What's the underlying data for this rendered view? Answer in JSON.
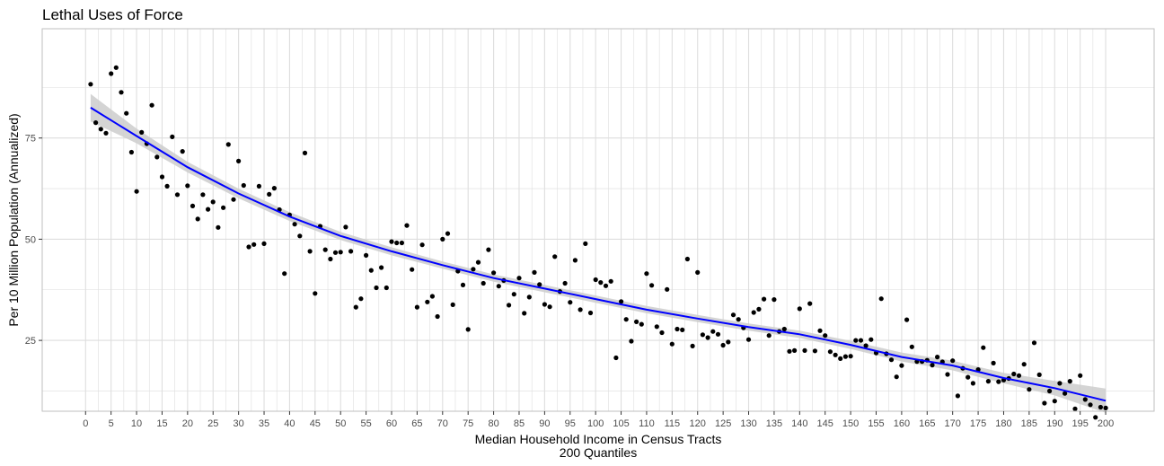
{
  "chart_data": {
    "type": "scatter",
    "title": "Lethal Uses of Force",
    "xlabel": "Median Household Income in Census Tracts",
    "xlabel_sub": "200 Quantiles",
    "ylabel": "Per 10 Million Population (Annualized)",
    "xlim": [
      -8.5,
      209.5
    ],
    "ylim": [
      7.5,
      102
    ],
    "x_ticks": [
      0,
      5,
      10,
      15,
      20,
      25,
      30,
      35,
      40,
      45,
      50,
      55,
      60,
      65,
      70,
      75,
      80,
      85,
      90,
      95,
      100,
      105,
      110,
      115,
      120,
      125,
      130,
      135,
      140,
      145,
      150,
      155,
      160,
      165,
      170,
      175,
      180,
      185,
      190,
      195,
      200
    ],
    "y_ticks": [
      25,
      50,
      75
    ],
    "grid": true,
    "legend": "none",
    "colors": {
      "points": "#000000",
      "smooth_line": "#0000ff",
      "confidence_band": "#cccccc",
      "grid": "#dedede",
      "panel_border": "#bfbfbf"
    },
    "series": [
      {
        "x": [
          1,
          2,
          3,
          4,
          5,
          6,
          7,
          8,
          9,
          10,
          11,
          12,
          13,
          14,
          15,
          16,
          17,
          18,
          19,
          20,
          21,
          22,
          23,
          24,
          25,
          26,
          27,
          28,
          29,
          30,
          31,
          32,
          33,
          34,
          35,
          36,
          37,
          38,
          39,
          40,
          41,
          42,
          43,
          44,
          45,
          46,
          47,
          48,
          49,
          50,
          51,
          52,
          53,
          54,
          55,
          56,
          57,
          58,
          59,
          60,
          61,
          62,
          63,
          64,
          65,
          66,
          67,
          68,
          69,
          70,
          71,
          72,
          73,
          74,
          75,
          76,
          77,
          78,
          79,
          80,
          81,
          82,
          83,
          84,
          85,
          86,
          87,
          88,
          89,
          90,
          91,
          92,
          93,
          94,
          95,
          96,
          97,
          98,
          99,
          100,
          101,
          102,
          103,
          104,
          105,
          106,
          107,
          108,
          109,
          110,
          111,
          112,
          113,
          114,
          115,
          116,
          117,
          118,
          119,
          120,
          121,
          122,
          123,
          124,
          125,
          126,
          127,
          128,
          129,
          130,
          131,
          132,
          133,
          134,
          135,
          136,
          137,
          138,
          139,
          140,
          141,
          142,
          143,
          144,
          145,
          146,
          147,
          148,
          149,
          150,
          151,
          152,
          153,
          154,
          155,
          156,
          157,
          158,
          159,
          160,
          161,
          162,
          163,
          164,
          165,
          166,
          167,
          168,
          169,
          170,
          171,
          172,
          173,
          174,
          175,
          176,
          177,
          178,
          179,
          180,
          181,
          182,
          183,
          184,
          185,
          186,
          187,
          188,
          189,
          190,
          191,
          192,
          193,
          194,
          195,
          196,
          197,
          198,
          199,
          200
        ],
        "y": [
          88.3,
          78.8,
          77.2,
          76.2,
          90.9,
          92.4,
          86.3,
          81.1,
          71.5,
          61.8,
          76.4,
          73.6,
          83.1,
          70.3,
          65.4,
          63.1,
          75.3,
          61.0,
          71.7,
          63.2,
          58.2,
          55.0,
          61.0,
          57.4,
          59.2,
          52.9,
          57.8,
          73.4,
          59.8,
          69.3,
          63.3,
          48.1,
          48.7,
          63.1,
          48.9,
          61.1,
          62.6,
          57.3,
          41.5,
          56.0,
          53.7,
          50.8,
          71.3,
          47.0,
          36.6,
          53.2,
          47.4,
          45.1,
          46.7,
          46.8,
          53.0,
          47.0,
          33.2,
          35.3,
          46.0,
          42.3,
          38.0,
          43.0,
          38.0,
          49.4,
          49.1,
          49.1,
          53.4,
          42.5,
          33.2,
          48.6,
          34.5,
          35.9,
          30.9,
          50.0,
          51.4,
          33.8,
          42.1,
          38.7,
          27.7,
          42.6,
          44.3,
          39.1,
          47.4,
          41.7,
          38.4,
          39.8,
          33.7,
          36.4,
          40.4,
          31.7,
          35.7,
          41.8,
          38.8,
          33.9,
          33.3,
          45.7,
          37.1,
          39.1,
          34.4,
          44.8,
          32.6,
          48.9,
          31.8,
          40.0,
          39.3,
          38.5,
          39.6,
          20.7,
          34.6,
          30.2,
          24.8,
          29.6,
          29.0,
          41.5,
          38.6,
          28.4,
          26.9,
          37.6,
          24.1,
          27.8,
          27.6,
          45.1,
          23.6,
          41.8,
          26.4,
          25.7,
          27.2,
          26.5,
          23.8,
          24.6,
          31.3,
          30.2,
          28.1,
          25.2,
          31.9,
          32.7,
          35.2,
          26.2,
          35.1,
          27.2,
          27.8,
          22.3,
          22.5,
          32.8,
          22.5,
          34.1,
          22.4,
          27.4,
          26.2,
          22.2,
          21.4,
          20.5,
          21.0,
          21.1,
          25.0,
          25.0,
          23.7,
          25.2,
          21.9,
          35.3,
          21.7,
          20.2,
          16.0,
          18.8,
          30.1,
          23.4,
          19.8,
          19.8,
          20.1,
          18.9,
          20.9,
          19.7,
          16.6,
          20.0,
          11.3,
          18.1,
          15.9,
          14.4,
          17.8,
          23.2,
          14.9,
          19.4,
          14.8,
          15.2,
          15.6,
          16.7,
          16.3,
          19.1,
          12.9,
          24.4,
          16.5,
          9.5,
          12.5,
          10.0,
          14.4,
          11.9,
          14.9,
          8.1,
          16.3,
          10.4,
          9.1,
          6.0,
          8.5,
          8.3
        ]
      }
    ],
    "smooth": {
      "x": [
        1,
        10,
        20,
        30,
        40,
        50,
        60,
        70,
        80,
        90,
        100,
        110,
        120,
        130,
        140,
        150,
        160,
        170,
        180,
        190,
        200
      ],
      "y": [
        82.5,
        75.5,
        67.8,
        61.3,
        55.6,
        50.8,
        47.0,
        43.6,
        40.4,
        37.8,
        35.2,
        32.6,
        30.4,
        28.3,
        26.5,
        23.9,
        20.9,
        18.8,
        15.7,
        13.2,
        10.1
      ],
      "se": [
        3.4,
        1.8,
        1.3,
        1.2,
        1.1,
        1.0,
        1.0,
        0.9,
        0.9,
        0.9,
        0.9,
        0.9,
        0.9,
        0.9,
        0.9,
        1.0,
        1.1,
        1.2,
        1.3,
        1.8,
        3.0
      ]
    }
  }
}
